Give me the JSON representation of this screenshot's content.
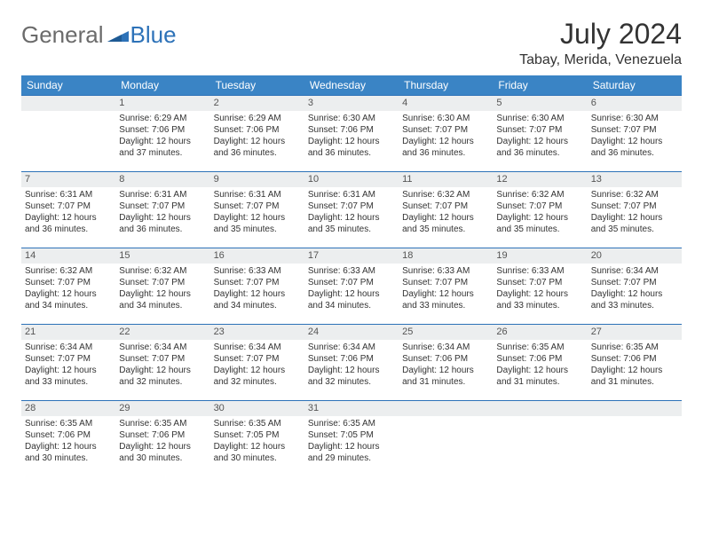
{
  "logo": {
    "general": "General",
    "blue": "Blue"
  },
  "title": "July 2024",
  "location": "Tabay, Merida, Venezuela",
  "colors": {
    "header_bg": "#3a84c5",
    "header_text": "#ffffff",
    "daynum_bg": "#eceeef",
    "border": "#2d72b8",
    "logo_gray": "#6b6b6b",
    "logo_blue": "#2d72b8"
  },
  "weekdays": [
    "Sunday",
    "Monday",
    "Tuesday",
    "Wednesday",
    "Thursday",
    "Friday",
    "Saturday"
  ],
  "weeks": [
    [
      {
        "n": "",
        "sr": "",
        "ss": "",
        "dl": ""
      },
      {
        "n": "1",
        "sr": "Sunrise: 6:29 AM",
        "ss": "Sunset: 7:06 PM",
        "dl": "Daylight: 12 hours and 37 minutes."
      },
      {
        "n": "2",
        "sr": "Sunrise: 6:29 AM",
        "ss": "Sunset: 7:06 PM",
        "dl": "Daylight: 12 hours and 36 minutes."
      },
      {
        "n": "3",
        "sr": "Sunrise: 6:30 AM",
        "ss": "Sunset: 7:06 PM",
        "dl": "Daylight: 12 hours and 36 minutes."
      },
      {
        "n": "4",
        "sr": "Sunrise: 6:30 AM",
        "ss": "Sunset: 7:07 PM",
        "dl": "Daylight: 12 hours and 36 minutes."
      },
      {
        "n": "5",
        "sr": "Sunrise: 6:30 AM",
        "ss": "Sunset: 7:07 PM",
        "dl": "Daylight: 12 hours and 36 minutes."
      },
      {
        "n": "6",
        "sr": "Sunrise: 6:30 AM",
        "ss": "Sunset: 7:07 PM",
        "dl": "Daylight: 12 hours and 36 minutes."
      }
    ],
    [
      {
        "n": "7",
        "sr": "Sunrise: 6:31 AM",
        "ss": "Sunset: 7:07 PM",
        "dl": "Daylight: 12 hours and 36 minutes."
      },
      {
        "n": "8",
        "sr": "Sunrise: 6:31 AM",
        "ss": "Sunset: 7:07 PM",
        "dl": "Daylight: 12 hours and 36 minutes."
      },
      {
        "n": "9",
        "sr": "Sunrise: 6:31 AM",
        "ss": "Sunset: 7:07 PM",
        "dl": "Daylight: 12 hours and 35 minutes."
      },
      {
        "n": "10",
        "sr": "Sunrise: 6:31 AM",
        "ss": "Sunset: 7:07 PM",
        "dl": "Daylight: 12 hours and 35 minutes."
      },
      {
        "n": "11",
        "sr": "Sunrise: 6:32 AM",
        "ss": "Sunset: 7:07 PM",
        "dl": "Daylight: 12 hours and 35 minutes."
      },
      {
        "n": "12",
        "sr": "Sunrise: 6:32 AM",
        "ss": "Sunset: 7:07 PM",
        "dl": "Daylight: 12 hours and 35 minutes."
      },
      {
        "n": "13",
        "sr": "Sunrise: 6:32 AM",
        "ss": "Sunset: 7:07 PM",
        "dl": "Daylight: 12 hours and 35 minutes."
      }
    ],
    [
      {
        "n": "14",
        "sr": "Sunrise: 6:32 AM",
        "ss": "Sunset: 7:07 PM",
        "dl": "Daylight: 12 hours and 34 minutes."
      },
      {
        "n": "15",
        "sr": "Sunrise: 6:32 AM",
        "ss": "Sunset: 7:07 PM",
        "dl": "Daylight: 12 hours and 34 minutes."
      },
      {
        "n": "16",
        "sr": "Sunrise: 6:33 AM",
        "ss": "Sunset: 7:07 PM",
        "dl": "Daylight: 12 hours and 34 minutes."
      },
      {
        "n": "17",
        "sr": "Sunrise: 6:33 AM",
        "ss": "Sunset: 7:07 PM",
        "dl": "Daylight: 12 hours and 34 minutes."
      },
      {
        "n": "18",
        "sr": "Sunrise: 6:33 AM",
        "ss": "Sunset: 7:07 PM",
        "dl": "Daylight: 12 hours and 33 minutes."
      },
      {
        "n": "19",
        "sr": "Sunrise: 6:33 AM",
        "ss": "Sunset: 7:07 PM",
        "dl": "Daylight: 12 hours and 33 minutes."
      },
      {
        "n": "20",
        "sr": "Sunrise: 6:34 AM",
        "ss": "Sunset: 7:07 PM",
        "dl": "Daylight: 12 hours and 33 minutes."
      }
    ],
    [
      {
        "n": "21",
        "sr": "Sunrise: 6:34 AM",
        "ss": "Sunset: 7:07 PM",
        "dl": "Daylight: 12 hours and 33 minutes."
      },
      {
        "n": "22",
        "sr": "Sunrise: 6:34 AM",
        "ss": "Sunset: 7:07 PM",
        "dl": "Daylight: 12 hours and 32 minutes."
      },
      {
        "n": "23",
        "sr": "Sunrise: 6:34 AM",
        "ss": "Sunset: 7:07 PM",
        "dl": "Daylight: 12 hours and 32 minutes."
      },
      {
        "n": "24",
        "sr": "Sunrise: 6:34 AM",
        "ss": "Sunset: 7:06 PM",
        "dl": "Daylight: 12 hours and 32 minutes."
      },
      {
        "n": "25",
        "sr": "Sunrise: 6:34 AM",
        "ss": "Sunset: 7:06 PM",
        "dl": "Daylight: 12 hours and 31 minutes."
      },
      {
        "n": "26",
        "sr": "Sunrise: 6:35 AM",
        "ss": "Sunset: 7:06 PM",
        "dl": "Daylight: 12 hours and 31 minutes."
      },
      {
        "n": "27",
        "sr": "Sunrise: 6:35 AM",
        "ss": "Sunset: 7:06 PM",
        "dl": "Daylight: 12 hours and 31 minutes."
      }
    ],
    [
      {
        "n": "28",
        "sr": "Sunrise: 6:35 AM",
        "ss": "Sunset: 7:06 PM",
        "dl": "Daylight: 12 hours and 30 minutes."
      },
      {
        "n": "29",
        "sr": "Sunrise: 6:35 AM",
        "ss": "Sunset: 7:06 PM",
        "dl": "Daylight: 12 hours and 30 minutes."
      },
      {
        "n": "30",
        "sr": "Sunrise: 6:35 AM",
        "ss": "Sunset: 7:05 PM",
        "dl": "Daylight: 12 hours and 30 minutes."
      },
      {
        "n": "31",
        "sr": "Sunrise: 6:35 AM",
        "ss": "Sunset: 7:05 PM",
        "dl": "Daylight: 12 hours and 29 minutes."
      },
      {
        "n": "",
        "sr": "",
        "ss": "",
        "dl": ""
      },
      {
        "n": "",
        "sr": "",
        "ss": "",
        "dl": ""
      },
      {
        "n": "",
        "sr": "",
        "ss": "",
        "dl": ""
      }
    ]
  ]
}
